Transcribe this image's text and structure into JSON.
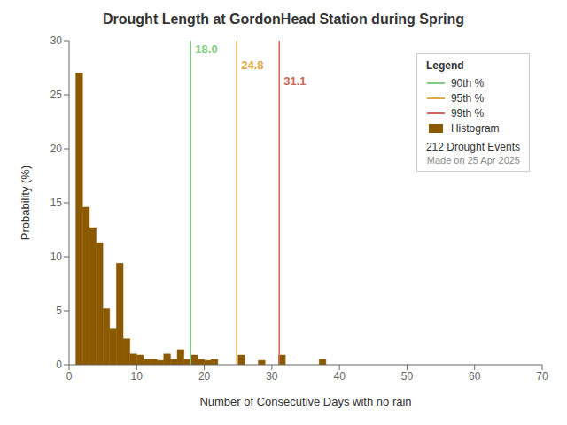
{
  "chart_data": {
    "type": "histogram",
    "title": "Drought Length at GordonHead Station during Spring",
    "x_label": "Number of Consecutive Days with no rain",
    "y_label": "Probability (%)",
    "bins": [
      1,
      2,
      3,
      4,
      5,
      6,
      7,
      8,
      9,
      10,
      11,
      12,
      13,
      14,
      15,
      16,
      17,
      18,
      19,
      20,
      21,
      22,
      23,
      24,
      25,
      26,
      27,
      28,
      29,
      30,
      31,
      32,
      33,
      34,
      35,
      36,
      37,
      38,
      39,
      40,
      41,
      42,
      43,
      44,
      45,
      46,
      47,
      48,
      49,
      50,
      51,
      52,
      53,
      54,
      55,
      56,
      57,
      58,
      59,
      60,
      61
    ],
    "series": [
      {
        "name": "Histogram",
        "color": "#8B5A00",
        "values": [
          27.0,
          14.6,
          12.7,
          11.3,
          5.2,
          3.3,
          9.4,
          2.4,
          1.0,
          0.9,
          0.5,
          0.5,
          0.4,
          1.0,
          0.5,
          1.4,
          0.5,
          0.9,
          0.5,
          0.4,
          0.5,
          0.0,
          0.0,
          0.0,
          0.9,
          0.0,
          0.0,
          0.4,
          0.0,
          0.0,
          0.9,
          0.0,
          0.0,
          0.0,
          0.0,
          0.0,
          0.5,
          0.0,
          0.0,
          0.0,
          0.0,
          0.0,
          0.0,
          0.0,
          0.0,
          0.0,
          0.0,
          0.0,
          0.0,
          0.0,
          0.0,
          0.0,
          0.0,
          0.0,
          0.0,
          0.0,
          0.0,
          0.0,
          0.0,
          0.0
        ]
      }
    ],
    "xlim": [
      0,
      70
    ],
    "xticks": [
      0,
      10,
      20,
      30,
      40,
      50,
      60,
      70
    ],
    "ylim": [
      0,
      30
    ],
    "yticks": [
      0,
      5,
      10,
      15,
      20,
      25,
      30
    ],
    "grid": false,
    "legend": "upper right",
    "legend_title": "Legend",
    "vlines": [
      {
        "name": "90th %",
        "x": 18.0,
        "label": "18.0",
        "color": "#80cc80"
      },
      {
        "name": "95th %",
        "x": 24.8,
        "label": "24.8",
        "color": "#ddaa44"
      },
      {
        "name": "99th %",
        "x": 31.1,
        "label": "31.1",
        "color": "#cc6655"
      }
    ],
    "annotations": [
      "212 Drought Events",
      "Made on 25 Apr 2025"
    ]
  }
}
